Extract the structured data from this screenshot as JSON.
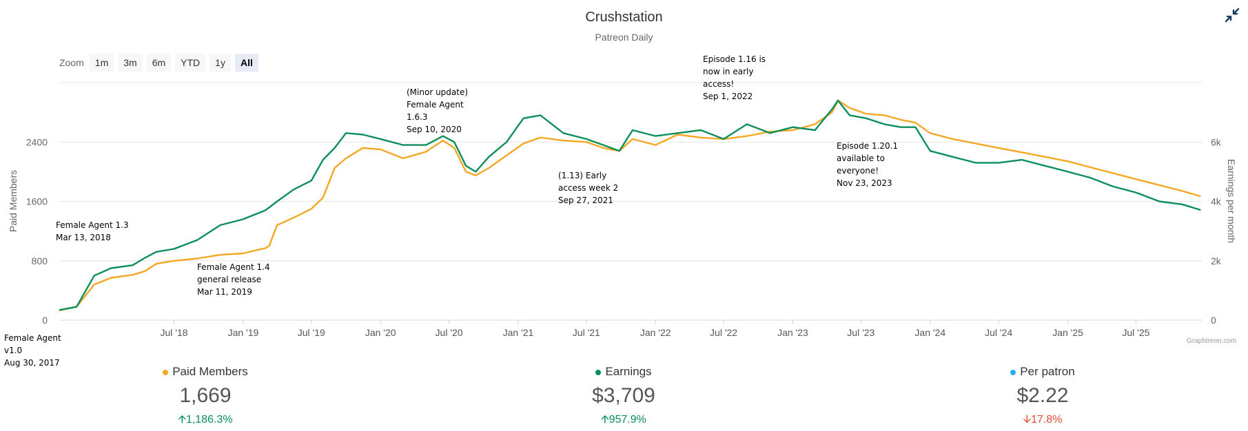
{
  "header": {
    "title": "Crushstation",
    "subtitle": "Patreon Daily"
  },
  "zoom": {
    "label": "Zoom",
    "buttons": [
      "1m",
      "3m",
      "6m",
      "YTD",
      "1y",
      "All"
    ],
    "active": "All"
  },
  "credit": "Graphtreon.com",
  "colors": {
    "members": "#f5a623",
    "earnings": "#0a8f5a",
    "per_patron": "#1fb0f0",
    "up": "#0a8f5a",
    "down": "#e34b33"
  },
  "stats": [
    {
      "label": "Paid Members",
      "value": "1,669",
      "change": "1,186.3%",
      "direction": "up"
    },
    {
      "label": "Earnings",
      "value": "$3,709",
      "change": "957.9%",
      "direction": "up"
    },
    {
      "label": "Per patron",
      "value": "$2.22",
      "change": "17.8%",
      "direction": "down"
    }
  ],
  "chart_data": {
    "type": "line",
    "x_range": [
      "2017-08-30",
      "2025-12-25"
    ],
    "x_ticks": [
      "Jul '18",
      "Jan '19",
      "Jul '19",
      "Jan '20",
      "Jul '20",
      "Jan '21",
      "Jul '21",
      "Jan '22",
      "Jul '22",
      "Jan '23",
      "Jul '23",
      "Jan '24",
      "Jul '24",
      "Jan '25",
      "Jul '25"
    ],
    "y_left": {
      "label": "Paid Members",
      "min": 0,
      "max": 3200,
      "ticks": [
        "0",
        "800",
        "1600",
        "2400"
      ]
    },
    "y_right": {
      "label": "Earnings per month",
      "min": 0,
      "max": 8000,
      "ticks": [
        "0",
        "2k",
        "4k",
        "6k"
      ]
    },
    "series": [
      {
        "name": "Paid Members",
        "axis": "left",
        "points": [
          [
            "2017-08-30",
            130
          ],
          [
            "2017-10-15",
            180
          ],
          [
            "2017-12-01",
            480
          ],
          [
            "2018-01-15",
            570
          ],
          [
            "2018-03-13",
            610
          ],
          [
            "2018-04-15",
            660
          ],
          [
            "2018-05-15",
            760
          ],
          [
            "2018-07-01",
            800
          ],
          [
            "2018-09-01",
            830
          ],
          [
            "2018-11-01",
            880
          ],
          [
            "2019-01-01",
            900
          ],
          [
            "2019-03-01",
            970
          ],
          [
            "2019-03-11",
            1000
          ],
          [
            "2019-04-01",
            1280
          ],
          [
            "2019-05-15",
            1380
          ],
          [
            "2019-07-01",
            1500
          ],
          [
            "2019-08-01",
            1650
          ],
          [
            "2019-09-01",
            2050
          ],
          [
            "2019-10-01",
            2180
          ],
          [
            "2019-11-15",
            2320
          ],
          [
            "2020-01-01",
            2300
          ],
          [
            "2020-03-01",
            2180
          ],
          [
            "2020-05-01",
            2270
          ],
          [
            "2020-06-15",
            2420
          ],
          [
            "2020-07-15",
            2320
          ],
          [
            "2020-08-15",
            2000
          ],
          [
            "2020-09-10",
            1950
          ],
          [
            "2020-10-15",
            2050
          ],
          [
            "2020-12-01",
            2220
          ],
          [
            "2021-01-15",
            2380
          ],
          [
            "2021-03-01",
            2460
          ],
          [
            "2021-05-01",
            2420
          ],
          [
            "2021-07-01",
            2400
          ],
          [
            "2021-08-15",
            2320
          ],
          [
            "2021-09-27",
            2280
          ],
          [
            "2021-11-01",
            2440
          ],
          [
            "2022-01-01",
            2360
          ],
          [
            "2022-03-01",
            2500
          ],
          [
            "2022-05-01",
            2460
          ],
          [
            "2022-07-01",
            2440
          ],
          [
            "2022-09-01",
            2480
          ],
          [
            "2022-11-01",
            2540
          ],
          [
            "2023-01-01",
            2560
          ],
          [
            "2023-03-01",
            2640
          ],
          [
            "2023-04-15",
            2800
          ],
          [
            "2023-05-01",
            2960
          ],
          [
            "2023-06-01",
            2860
          ],
          [
            "2023-07-15",
            2780
          ],
          [
            "2023-09-01",
            2760
          ],
          [
            "2023-10-15",
            2700
          ],
          [
            "2023-11-23",
            2660
          ],
          [
            "2024-01-01",
            2520
          ],
          [
            "2024-03-01",
            2440
          ],
          [
            "2024-05-01",
            2380
          ],
          [
            "2024-07-01",
            2320
          ],
          [
            "2024-09-01",
            2260
          ],
          [
            "2024-11-01",
            2200
          ],
          [
            "2025-01-01",
            2140
          ],
          [
            "2025-03-01",
            2060
          ],
          [
            "2025-05-01",
            1980
          ],
          [
            "2025-07-01",
            1900
          ],
          [
            "2025-09-01",
            1820
          ],
          [
            "2025-11-01",
            1740
          ],
          [
            "2025-12-20",
            1669
          ]
        ]
      },
      {
        "name": "Earnings",
        "axis": "right",
        "points": [
          [
            "2017-08-30",
            340
          ],
          [
            "2017-10-15",
            450
          ],
          [
            "2017-12-01",
            1500
          ],
          [
            "2018-01-15",
            1750
          ],
          [
            "2018-03-13",
            1850
          ],
          [
            "2018-04-15",
            2100
          ],
          [
            "2018-05-15",
            2300
          ],
          [
            "2018-07-01",
            2400
          ],
          [
            "2018-09-01",
            2700
          ],
          [
            "2018-11-01",
            3200
          ],
          [
            "2019-01-01",
            3400
          ],
          [
            "2019-03-01",
            3700
          ],
          [
            "2019-04-01",
            4000
          ],
          [
            "2019-05-15",
            4400
          ],
          [
            "2019-07-01",
            4700
          ],
          [
            "2019-08-01",
            5400
          ],
          [
            "2019-09-01",
            5800
          ],
          [
            "2019-10-01",
            6300
          ],
          [
            "2019-11-15",
            6250
          ],
          [
            "2020-01-01",
            6100
          ],
          [
            "2020-03-01",
            5900
          ],
          [
            "2020-05-01",
            5900
          ],
          [
            "2020-06-15",
            6200
          ],
          [
            "2020-07-15",
            6000
          ],
          [
            "2020-08-15",
            5200
          ],
          [
            "2020-09-10",
            5000
          ],
          [
            "2020-10-15",
            5500
          ],
          [
            "2020-12-01",
            6000
          ],
          [
            "2021-01-15",
            6800
          ],
          [
            "2021-03-01",
            6900
          ],
          [
            "2021-05-01",
            6300
          ],
          [
            "2021-07-01",
            6100
          ],
          [
            "2021-08-15",
            5900
          ],
          [
            "2021-09-27",
            5700
          ],
          [
            "2021-11-01",
            6400
          ],
          [
            "2022-01-01",
            6200
          ],
          [
            "2022-03-01",
            6300
          ],
          [
            "2022-05-01",
            6400
          ],
          [
            "2022-07-01",
            6100
          ],
          [
            "2022-09-01",
            6600
          ],
          [
            "2022-11-01",
            6300
          ],
          [
            "2023-01-01",
            6500
          ],
          [
            "2023-03-01",
            6400
          ],
          [
            "2023-04-15",
            7100
          ],
          [
            "2023-05-01",
            7400
          ],
          [
            "2023-06-01",
            6900
          ],
          [
            "2023-07-15",
            6800
          ],
          [
            "2023-09-01",
            6600
          ],
          [
            "2023-10-15",
            6500
          ],
          [
            "2023-11-23",
            6500
          ],
          [
            "2024-01-01",
            5700
          ],
          [
            "2024-03-01",
            5500
          ],
          [
            "2024-05-01",
            5300
          ],
          [
            "2024-07-01",
            5300
          ],
          [
            "2024-09-01",
            5400
          ],
          [
            "2024-11-01",
            5200
          ],
          [
            "2025-01-01",
            5000
          ],
          [
            "2025-03-01",
            4800
          ],
          [
            "2025-05-01",
            4500
          ],
          [
            "2025-07-01",
            4300
          ],
          [
            "2025-09-01",
            4000
          ],
          [
            "2025-11-01",
            3900
          ],
          [
            "2025-12-20",
            3709
          ]
        ]
      }
    ],
    "annotations": [
      {
        "lines": [
          "Female Agent",
          "v1.0",
          "Aug 30, 2017"
        ]
      },
      {
        "lines": [
          "Female Agent 1.3",
          "Mar 13, 2018"
        ]
      },
      {
        "lines": [
          "Female Agent 1.4",
          "general release",
          "Mar 11, 2019"
        ]
      },
      {
        "lines": [
          "(Minor update)",
          "Female Agent",
          "1.6.3",
          "Sep 10, 2020"
        ]
      },
      {
        "lines": [
          "(1.13) Early",
          "access week 2",
          "Sep 27, 2021"
        ]
      },
      {
        "lines": [
          "Episode 1.16 is",
          "now in early",
          "access!",
          "Sep 1, 2022"
        ]
      },
      {
        "lines": [
          "Episode 1.20.1",
          "available to",
          "everyone!",
          "Nov 23, 2023"
        ]
      }
    ]
  }
}
